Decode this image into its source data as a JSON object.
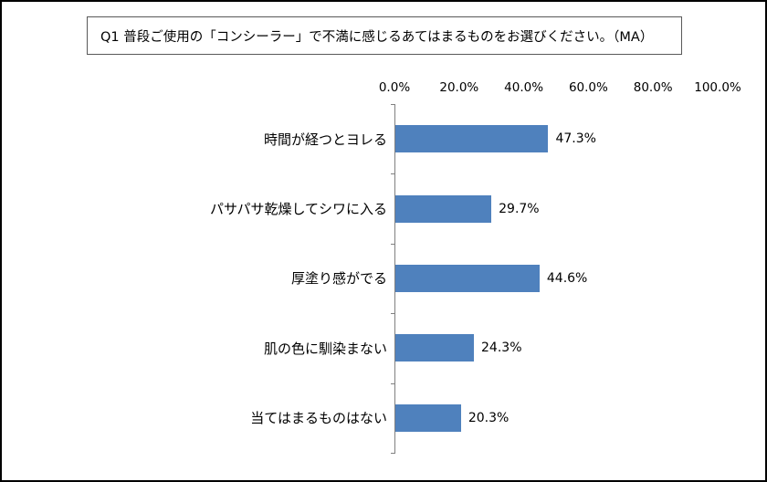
{
  "chart_data": {
    "type": "bar",
    "orientation": "horizontal",
    "title": "Q1 普段ご使用の「コンシーラー」で不満に感じるあてはまるものをお選びください。（MA）",
    "categories": [
      "時間が経つとヨレる",
      "パサパサ乾燥してシワに入る",
      "厚塗り感がでる",
      "肌の色に馴染まない",
      "当てはまるものはない"
    ],
    "values": [
      47.3,
      29.7,
      44.6,
      24.3,
      20.3
    ],
    "value_labels": [
      "47.3%",
      "29.7%",
      "44.6%",
      "24.3%",
      "20.3%"
    ],
    "xticks": [
      "0.0%",
      "20.0%",
      "40.0%",
      "60.0%",
      "80.0%",
      "100.0%"
    ],
    "xlim": [
      0,
      100
    ],
    "bar_color": "#4f81bd",
    "axis_color": "#808080",
    "grid": false,
    "legend_position": "none"
  }
}
